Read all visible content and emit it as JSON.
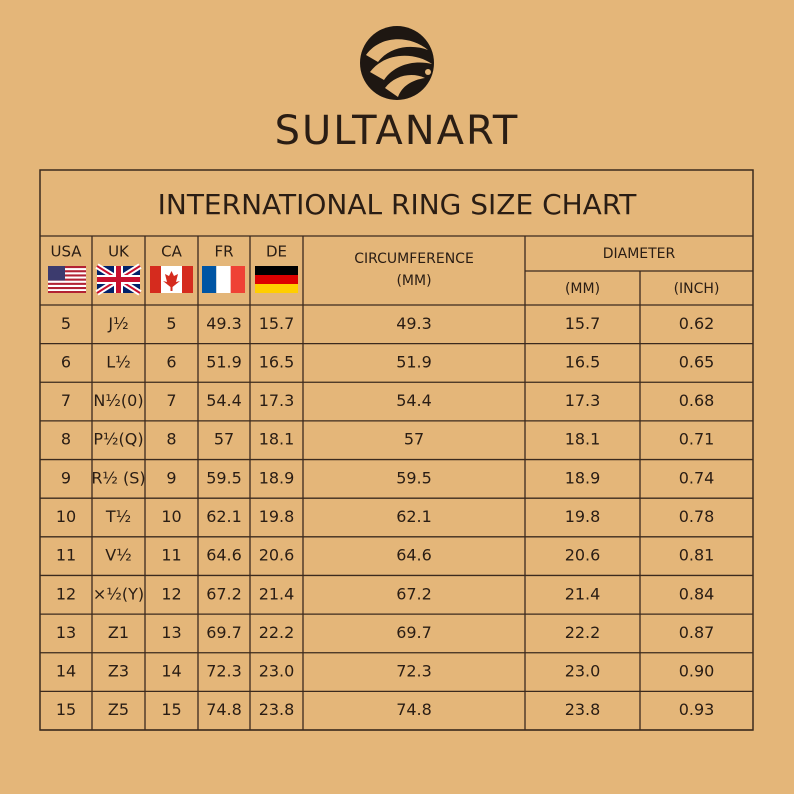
{
  "brand": "SULTANART",
  "table": {
    "title": "INTERNATIONAL RING SIZE CHART",
    "countries": [
      "USA",
      "UK",
      "CA",
      "FR",
      "DE"
    ],
    "circumference": {
      "label": "CIRCUMFERENCE",
      "unit": "(MM)"
    },
    "diameter": {
      "label": "DIAMETER",
      "units": [
        "(MM)",
        "(INCH)"
      ]
    },
    "rows": [
      [
        "5",
        "J½",
        "5",
        "49.3",
        "15.7",
        "49.3",
        "15.7",
        "0.62"
      ],
      [
        "6",
        "L½",
        "6",
        "51.9",
        "16.5",
        "51.9",
        "16.5",
        "0.65"
      ],
      [
        "7",
        "N½(0)",
        "7",
        "54.4",
        "17.3",
        "54.4",
        "17.3",
        "0.68"
      ],
      [
        "8",
        "P½(Q)",
        "8",
        "57",
        "18.1",
        "57",
        "18.1",
        "0.71"
      ],
      [
        "9",
        "R½ (S)",
        "9",
        "59.5",
        "18.9",
        "59.5",
        "18.9",
        "0.74"
      ],
      [
        "10",
        "T½",
        "10",
        "62.1",
        "19.8",
        "62.1",
        "19.8",
        "0.78"
      ],
      [
        "11",
        "V½",
        "11",
        "64.6",
        "20.6",
        "64.6",
        "20.6",
        "0.81"
      ],
      [
        "12",
        "×½(Y)",
        "12",
        "67.2",
        "21.4",
        "67.2",
        "21.4",
        "0.84"
      ],
      [
        "13",
        "Z1",
        "13",
        "69.7",
        "22.2",
        "69.7",
        "22.2",
        "0.87"
      ],
      [
        "14",
        "Z3",
        "14",
        "72.3",
        "23.0",
        "72.3",
        "23.0",
        "0.90"
      ],
      [
        "15",
        "Z5",
        "15",
        "74.8",
        "23.8",
        "74.8",
        "23.8",
        "0.93"
      ]
    ]
  }
}
